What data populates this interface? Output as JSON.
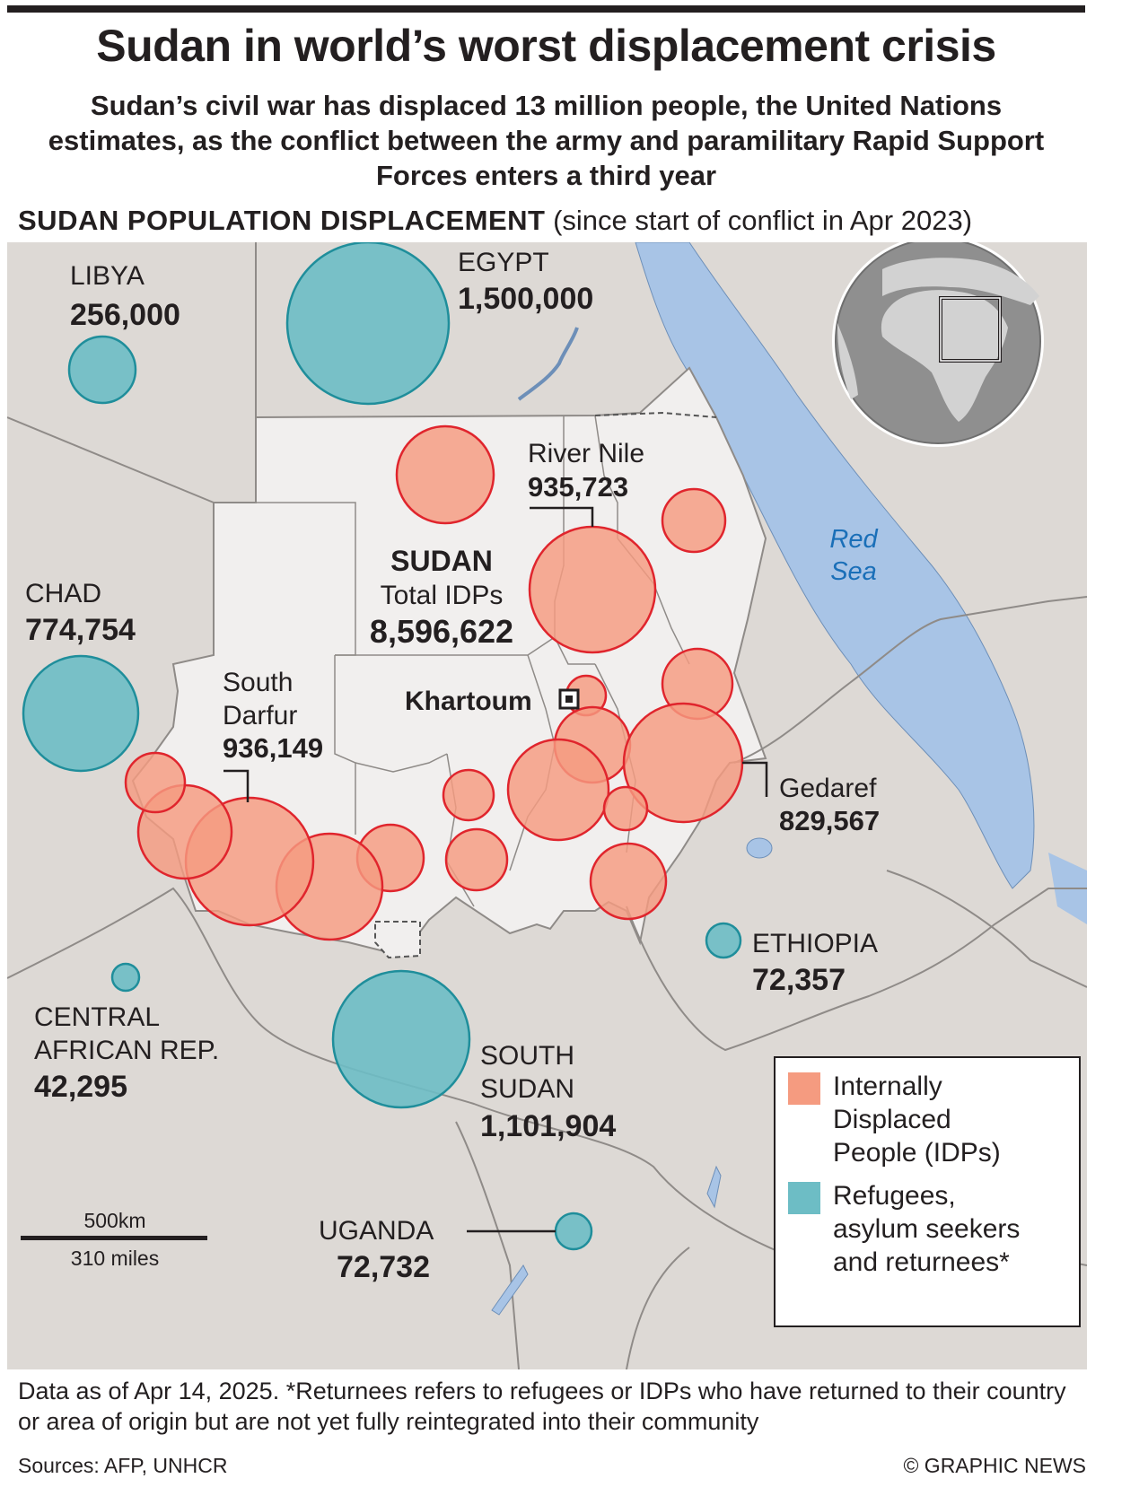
{
  "title": "Sudan in world’s worst displacement crisis",
  "subtitle": "Sudan’s civil war has displaced 13 million people, the United Nations estimates, as the conflict between the army and paramilitary Rapid Support Forces enters a third year",
  "section": {
    "label": "Sudan Population Displacement",
    "note": "(since start of conflict in Apr 2023)"
  },
  "countries": {
    "libya": {
      "name": "LIBYA",
      "value": "256,000"
    },
    "egypt": {
      "name": "EGYPT",
      "value": "1,500,000"
    },
    "chad": {
      "name": "CHAD",
      "value": "774,754"
    },
    "car": {
      "name_line1": "CENTRAL",
      "name_line2": "AFRICAN REP.",
      "value": "42,295"
    },
    "south_sudan": {
      "name_line1": "SOUTH",
      "name_line2": "SUDAN",
      "value": "1,101,904"
    },
    "ethiopia": {
      "name": "ETHIOPIA",
      "value": "72,357"
    },
    "uganda": {
      "name": "UGANDA",
      "value": "72,732"
    }
  },
  "sudan": {
    "name": "SUDAN",
    "idp_label": "Total IDPs",
    "idp_value": "8,596,622"
  },
  "regions": {
    "river_nile": {
      "name": "River Nile",
      "value": "935,723"
    },
    "south_darfur": {
      "name_line1": "South",
      "name_line2": "Darfur",
      "value": "936,149"
    },
    "gedaref": {
      "name": "Gedaref",
      "value": "829,567"
    }
  },
  "capital": "Khartoum",
  "sea": {
    "line1": "Red",
    "line2": "Sea"
  },
  "legend": {
    "idp": {
      "line1": "Internally",
      "line2": "Displaced",
      "line3": "People (IDPs)",
      "color": "#f59b80"
    },
    "refugees": {
      "line1": "Refugees,",
      "line2": "asylum seekers",
      "line3": "and returnees*",
      "color": "#6dbdc5"
    }
  },
  "scale": {
    "km": "500km",
    "miles": "310 miles"
  },
  "footnote": "Data as of Apr 14, 2025. *Returnees refers to refugees or IDPs who have returned to their country or area of origin but are not yet fully reintegrated into their community",
  "sources": "Sources: AFP, UNHCR",
  "credit": "© GRAPHIC NEWS",
  "colors": {
    "idp_fill": "#f59b80",
    "idp_stroke": "#e0252d",
    "refugee_fill": "#6dbdc5",
    "refugee_stroke": "#1f8e9b",
    "land": "#ddd9d5",
    "sudan": "#f1efee",
    "water": "#a8c4e6"
  }
}
